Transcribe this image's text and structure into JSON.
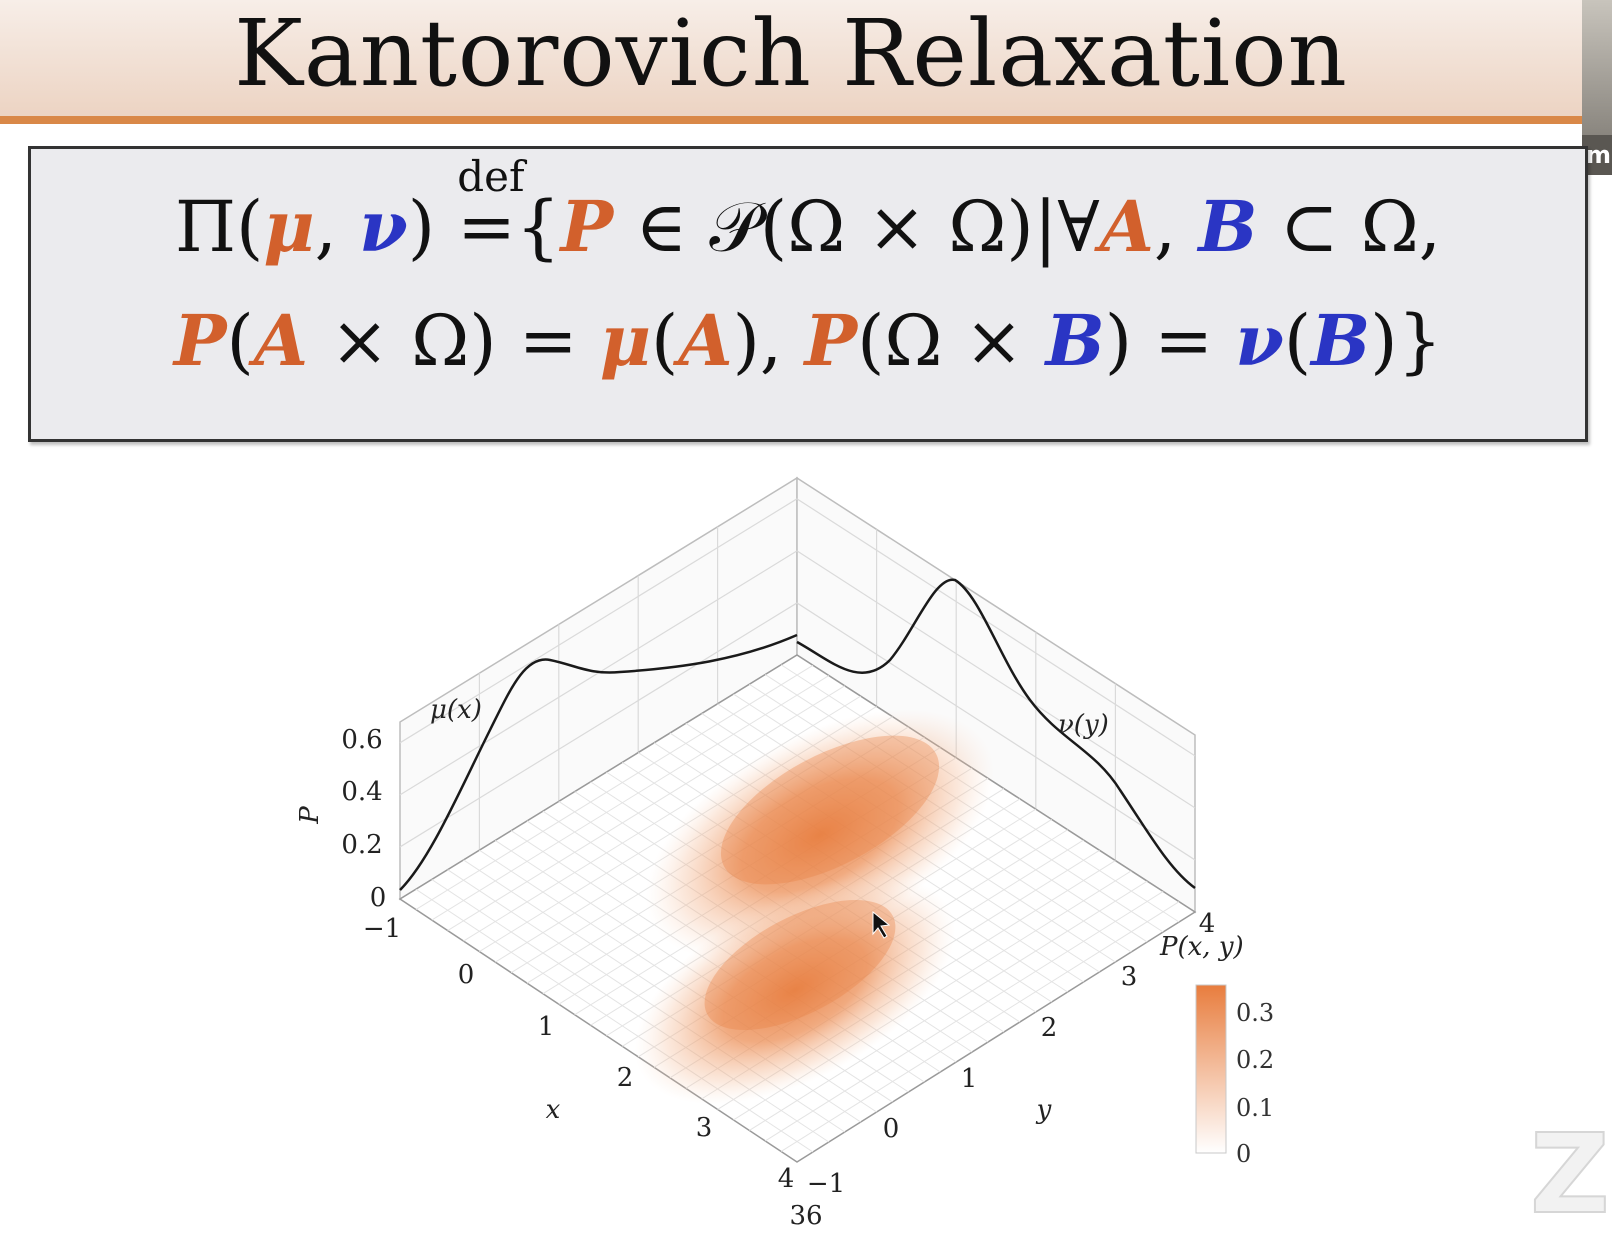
{
  "title": "Kantorovich Relaxation",
  "sidebar_letter": "m",
  "equation": {
    "line1": {
      "Pi": "Π(",
      "mu": "μ",
      "comma1": ", ",
      "nu": "ν",
      "close": ") ",
      "defeq": "=",
      "def_label": "def",
      "open_set": "{",
      "P": "P",
      "in_calP": " ∈ 𝒫(Ω × Ω)|∀",
      "A": "A",
      "comma2": ", ",
      "B": "B",
      "subset": " ⊂ Ω,"
    },
    "line2": {
      "P1": "P",
      "p1": "(",
      "A1": "A",
      "mid1": " × Ω) = ",
      "mu": "μ",
      "p2": "(",
      "A2": "A",
      "mid2": "), ",
      "P2": "P",
      "mid3": "(Ω × ",
      "B1": "B",
      "mid4": ") = ",
      "nu": "ν",
      "p3": "(",
      "B2": "B",
      "end": ")}"
    }
  },
  "plot": {
    "marginal_x_label": "μ(x)",
    "marginal_y_label": "ν(y)",
    "z_label": "P",
    "x_label": "x",
    "y_label": "y",
    "colorbar_title": "P(x, y)",
    "z_ticks": [
      "0.6",
      "0.4",
      "0.2",
      "0"
    ],
    "x_ticks": [
      "−1",
      "0",
      "1",
      "2",
      "3",
      "4"
    ],
    "y_ticks": [
      "−1",
      "0",
      "1",
      "2",
      "3",
      "4"
    ],
    "colorbar_ticks": [
      "0.3",
      "0.2",
      "0.1",
      "0"
    ],
    "page_number": "36",
    "colormap": [
      "#ffffff",
      "#e87d3e"
    ]
  }
}
